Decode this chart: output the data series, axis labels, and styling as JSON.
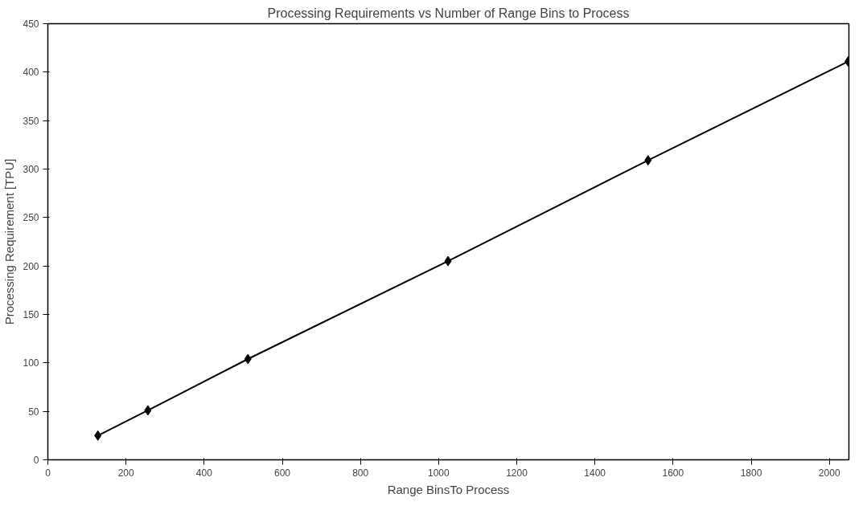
{
  "chart_data": {
    "type": "line",
    "title": "Processing Requirements vs Number of Range Bins to Process",
    "xlabel": "Range BinsTo Process",
    "ylabel": "Processing Requirement [TPU]",
    "x": [
      128,
      256,
      512,
      1024,
      1536,
      2048
    ],
    "series": [
      {
        "color": "#000000",
        "values": [
          25,
          51,
          104,
          205,
          309,
          411
        ]
      }
    ],
    "xlim": [
      0,
      2050
    ],
    "xticks": [
      0,
      200,
      400,
      600,
      800,
      1000,
      1200,
      1400,
      1600,
      1800,
      2000
    ],
    "ylim": [
      0,
      450
    ],
    "yticks": [
      0,
      50,
      100,
      150,
      200,
      250,
      300,
      350,
      400,
      450
    ],
    "marker": "diamond",
    "line_style": "solid",
    "grid": false
  }
}
